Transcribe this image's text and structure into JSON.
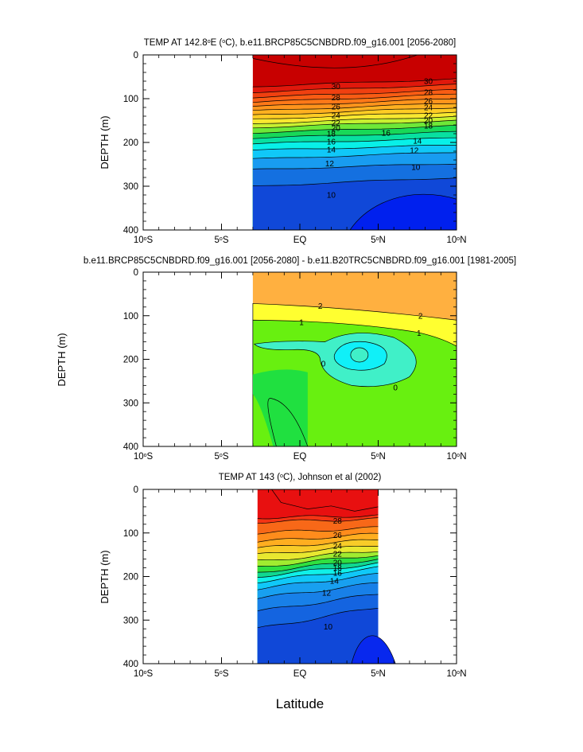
{
  "figure": {
    "xlabel": "Latitude",
    "outer_ylabel": "DEPTH (m)"
  },
  "chart_data": [
    {
      "type": "contour",
      "title_parts": [
        "TEMP AT 142.8",
        "o",
        "E (",
        "o",
        "C), b.e11.BRCP85C5CNBDRD.f09_g16.001 [2056-2080]"
      ],
      "ylabel": "DEPTH (m)",
      "xlim": [
        -10,
        10
      ],
      "ylim": [
        0,
        400
      ],
      "y_reversed": true,
      "x_ticks": [
        {
          "value": -10,
          "label": "10",
          "suffix": "S"
        },
        {
          "value": -5,
          "label": "5",
          "suffix": "S"
        },
        {
          "value": 0,
          "label": "EQ",
          "suffix": ""
        },
        {
          "value": 5,
          "label": "5",
          "suffix": "N"
        },
        {
          "value": 10,
          "label": "10",
          "suffix": "N"
        }
      ],
      "y_ticks": [
        "0",
        "100",
        "200",
        "300",
        "400"
      ],
      "data_extent_lat": [
        -3,
        10
      ],
      "bands": [
        {
          "depth_top_west": 0,
          "depth_top_east": 0,
          "color": "#c80000",
          "level": 31
        },
        {
          "depth_top_west": 72,
          "depth_top_east": 55,
          "color": "#e0180c",
          "level": 30
        },
        {
          "depth_top_west": 85,
          "depth_top_east": 68,
          "color": "#f04010",
          "level": 29
        },
        {
          "depth_top_west": 97,
          "depth_top_east": 80,
          "color": "#f85c14",
          "level": 28
        },
        {
          "depth_top_west": 108,
          "depth_top_east": 90,
          "color": "#ff7818",
          "level": 27
        },
        {
          "depth_top_west": 118,
          "depth_top_east": 100,
          "color": "#ff941c",
          "level": 26
        },
        {
          "depth_top_west": 128,
          "depth_top_east": 110,
          "color": "#ffb020",
          "level": 25
        },
        {
          "depth_top_west": 138,
          "depth_top_east": 120,
          "color": "#ffcc24",
          "level": 24
        },
        {
          "depth_top_west": 147,
          "depth_top_east": 130,
          "color": "#f8e830",
          "level": 23
        },
        {
          "depth_top_west": 157,
          "depth_top_east": 140,
          "color": "#c8f030",
          "level": 22
        },
        {
          "depth_top_west": 166,
          "depth_top_east": 150,
          "color": "#6ee838",
          "level": 21
        },
        {
          "depth_top_west": 178,
          "depth_top_east": 162,
          "color": "#18d858",
          "level": 20
        },
        {
          "depth_top_west": 190,
          "depth_top_east": 176,
          "color": "#08e0a0",
          "level": 18
        },
        {
          "depth_top_west": 203,
          "depth_top_east": 190,
          "color": "#08f0e8",
          "level": 16
        },
        {
          "depth_top_west": 218,
          "depth_top_east": 206,
          "color": "#10c8f8",
          "level": 14
        },
        {
          "depth_top_west": 238,
          "depth_top_east": 222,
          "color": "#189cf0",
          "level": 12
        },
        {
          "depth_top_west": 262,
          "depth_top_east": 248,
          "color": "#1470e0",
          "level": 10
        },
        {
          "depth_top_west": 300,
          "depth_top_east": 280,
          "color": "#1048d8",
          "level": 9
        }
      ],
      "cold_core": {
        "center_lat": 8.2,
        "top_depth": 295,
        "color": "#0020ee"
      },
      "contour_labels": [
        {
          "text": "30",
          "lat": 2.3,
          "depth": 72
        },
        {
          "text": "30",
          "lat": 8.2,
          "depth": 60
        },
        {
          "text": "28",
          "lat": 2.3,
          "depth": 97
        },
        {
          "text": "28",
          "lat": 8.2,
          "depth": 85
        },
        {
          "text": "26",
          "lat": 2.3,
          "depth": 118
        },
        {
          "text": "26",
          "lat": 8.2,
          "depth": 105
        },
        {
          "text": "24",
          "lat": 2.3,
          "depth": 138
        },
        {
          "text": "24",
          "lat": 8.2,
          "depth": 120
        },
        {
          "text": "22",
          "lat": 2.3,
          "depth": 155
        },
        {
          "text": "22",
          "lat": 8.2,
          "depth": 138
        },
        {
          "text": "20",
          "lat": 2.3,
          "depth": 167
        },
        {
          "text": "20",
          "lat": 8.2,
          "depth": 150
        },
        {
          "text": "18",
          "lat": 2.0,
          "depth": 180
        },
        {
          "text": "18",
          "lat": 8.2,
          "depth": 162
        },
        {
          "text": "16",
          "lat": 2.0,
          "depth": 198
        },
        {
          "text": "16",
          "lat": 5.5,
          "depth": 178
        },
        {
          "text": "14",
          "lat": 2.0,
          "depth": 216
        },
        {
          "text": "14",
          "lat": 7.5,
          "depth": 196
        },
        {
          "text": "12",
          "lat": 1.9,
          "depth": 248
        },
        {
          "text": "12",
          "lat": 7.3,
          "depth": 218
        },
        {
          "text": "10",
          "lat": 2.0,
          "depth": 320
        },
        {
          "text": "10",
          "lat": 7.4,
          "depth": 256
        }
      ]
    },
    {
      "type": "contour",
      "title_parts": [
        "b.e11.BRCP85C5CNBDRD.f09_g16.001 [2056-2080] - b.e11.B20TRC5CNBDRD.f09_g16.001 [1981-2005]"
      ],
      "ylabel": "DEPTH (m)",
      "xlim": [
        -10,
        10
      ],
      "ylim": [
        0,
        400
      ],
      "y_reversed": true,
      "x_ticks": [
        {
          "value": -10,
          "label": "10",
          "suffix": "S"
        },
        {
          "value": -5,
          "label": "5",
          "suffix": "S"
        },
        {
          "value": 0,
          "label": "EQ",
          "suffix": ""
        },
        {
          "value": 5,
          "label": "5",
          "suffix": "N"
        },
        {
          "value": 10,
          "label": "10",
          "suffix": "N"
        }
      ],
      "y_ticks": [
        "0",
        "100",
        "200",
        "300",
        "400"
      ],
      "data_extent_lat": [
        -3,
        10
      ],
      "layers": {
        "above_2": "#ffb040",
        "between_1_2": "#ffff30",
        "between_0_1": "#68f010",
        "between_0_1_mid": "#20e040",
        "between_neg1_0": "#40f0c8",
        "below_neg1": "#10f0f8"
      },
      "contour_labels": [
        {
          "text": "2",
          "lat": 1.3,
          "depth": 78
        },
        {
          "text": "2",
          "lat": 7.7,
          "depth": 100
        },
        {
          "text": "1",
          "lat": 0.1,
          "depth": 115
        },
        {
          "text": "1",
          "lat": 7.6,
          "depth": 140
        },
        {
          "text": "0",
          "lat": 1.5,
          "depth": 210
        },
        {
          "text": "0",
          "lat": 6.1,
          "depth": 265
        }
      ]
    },
    {
      "type": "contour",
      "title_parts": [
        "TEMP AT 143 (",
        "o",
        "C), Johnson et al (2002)"
      ],
      "ylabel": "DEPTH (m)",
      "xlim": [
        -10,
        10
      ],
      "ylim": [
        0,
        400
      ],
      "y_reversed": true,
      "x_ticks": [
        {
          "value": -10,
          "label": "10",
          "suffix": "S"
        },
        {
          "value": -5,
          "label": "5",
          "suffix": "S"
        },
        {
          "value": 0,
          "label": "EQ",
          "suffix": ""
        },
        {
          "value": 5,
          "label": "5",
          "suffix": "N"
        },
        {
          "value": 10,
          "label": "10",
          "suffix": "N"
        }
      ],
      "y_ticks": [
        "0",
        "100",
        "200",
        "300",
        "400"
      ],
      "data_extent_lat": [
        -2.7,
        5
      ],
      "bands": [
        {
          "depth_top_west": 0,
          "depth_top_east": 0,
          "color": "#e81010",
          "level": 29
        },
        {
          "depth_top_west": 65,
          "depth_top_east": 60,
          "color": "#f43414",
          "level": 28
        },
        {
          "depth_top_west": 75,
          "depth_top_east": 68,
          "color": "#f86818",
          "level": 27
        },
        {
          "depth_top_west": 100,
          "depth_top_east": 88,
          "color": "#ff8c1c",
          "level": 26
        },
        {
          "depth_top_west": 120,
          "depth_top_east": 102,
          "color": "#ffae20",
          "level": 25
        },
        {
          "depth_top_west": 135,
          "depth_top_east": 115,
          "color": "#f8cc28",
          "level": 24
        },
        {
          "depth_top_west": 150,
          "depth_top_east": 128,
          "color": "#e8e830",
          "level": 23
        },
        {
          "depth_top_west": 165,
          "depth_top_east": 140,
          "color": "#a0ec30",
          "level": 22
        },
        {
          "depth_top_west": 178,
          "depth_top_east": 150,
          "color": "#30e040",
          "level": 21
        },
        {
          "depth_top_west": 190,
          "depth_top_east": 160,
          "color": "#10d890",
          "level": 20
        },
        {
          "depth_top_west": 200,
          "depth_top_east": 170,
          "color": "#10f0e8",
          "level": 18
        },
        {
          "depth_top_west": 212,
          "depth_top_east": 180,
          "color": "#10c8f8",
          "level": 16
        },
        {
          "depth_top_west": 228,
          "depth_top_east": 195,
          "color": "#18a0f0",
          "level": 14
        },
        {
          "depth_top_west": 250,
          "depth_top_east": 215,
          "color": "#1880e8",
          "level": 12
        },
        {
          "depth_top_west": 280,
          "depth_top_east": 240,
          "color": "#1464e0",
          "level": 11
        },
        {
          "depth_top_west": 320,
          "depth_top_east": 270,
          "color": "#1048d8",
          "level": 10
        }
      ],
      "cold_core": {
        "center_lat": 4.7,
        "top_depth": 318,
        "color": "#0828ee"
      },
      "contour_labels": [
        {
          "text": "28",
          "lat": 2.4,
          "depth": 72
        },
        {
          "text": "26",
          "lat": 2.4,
          "depth": 105
        },
        {
          "text": "24",
          "lat": 2.4,
          "depth": 130
        },
        {
          "text": "22",
          "lat": 2.4,
          "depth": 148
        },
        {
          "text": "20",
          "lat": 2.4,
          "depth": 168
        },
        {
          "text": "18",
          "lat": 2.4,
          "depth": 180
        },
        {
          "text": "16",
          "lat": 2.4,
          "depth": 192
        },
        {
          "text": "14",
          "lat": 2.2,
          "depth": 210
        },
        {
          "text": "12",
          "lat": 1.7,
          "depth": 237
        },
        {
          "text": "10",
          "lat": 1.8,
          "depth": 315
        }
      ]
    }
  ]
}
